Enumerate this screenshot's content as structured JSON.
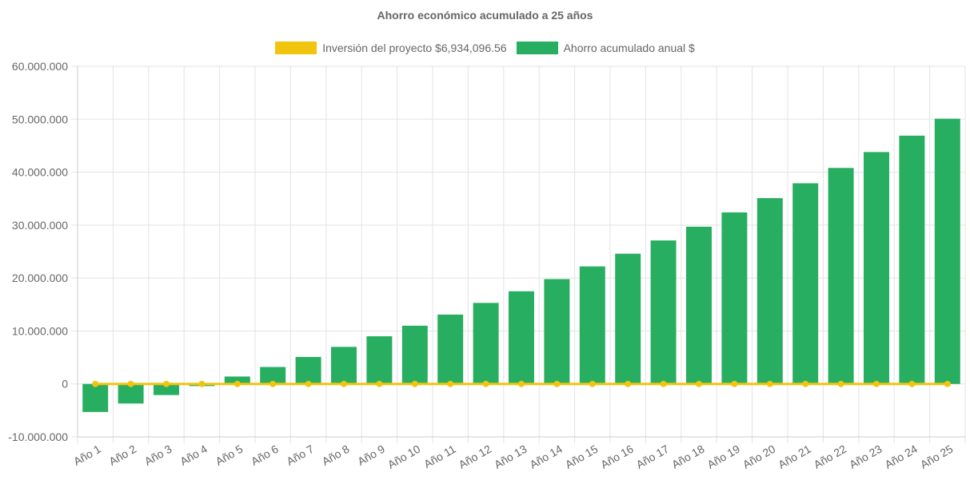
{
  "chart_data": {
    "type": "bar",
    "title": "Ahorro económico acumulado a 25 años",
    "categories": [
      "Año 1",
      "Año 2",
      "Año 3",
      "Año 4",
      "Año 5",
      "Año 6",
      "Año 7",
      "Año 8",
      "Año 9",
      "Año 10",
      "Año 11",
      "Año 12",
      "Año 13",
      "Año 14",
      "Año 15",
      "Año 16",
      "Año 17",
      "Año 18",
      "Año 19",
      "Año 20",
      "Año 21",
      "Año 22",
      "Año 23",
      "Año 24",
      "Año 25"
    ],
    "series": [
      {
        "name": "Inversión del proyecto $6,934,096.56",
        "type": "line",
        "color": "#f1c40f",
        "values": [
          0,
          0,
          0,
          0,
          0,
          0,
          0,
          0,
          0,
          0,
          0,
          0,
          0,
          0,
          0,
          0,
          0,
          0,
          0,
          0,
          0,
          0,
          0,
          0,
          0
        ]
      },
      {
        "name": "Ahorro acumulado anual $",
        "type": "bar",
        "color": "#27ae60",
        "values": [
          -5300000,
          -3700000,
          -2100000,
          -400000,
          1400000,
          3200000,
          5100000,
          7000000,
          9000000,
          11000000,
          13100000,
          15300000,
          17500000,
          19800000,
          22200000,
          24600000,
          27100000,
          29700000,
          32400000,
          35100000,
          37900000,
          40800000,
          43800000,
          46900000,
          50100000
        ]
      }
    ],
    "ylim": [
      -10000000,
      60000000
    ],
    "yticks": [
      -10000000,
      0,
      10000000,
      20000000,
      30000000,
      40000000,
      50000000,
      60000000
    ],
    "ytick_labels": [
      "-10.000.000",
      "0",
      "10.000.000",
      "20.000.000",
      "30.000.000",
      "40.000.000",
      "50.000.000",
      "60.000.000"
    ],
    "grid": true,
    "legend_position": "top"
  }
}
